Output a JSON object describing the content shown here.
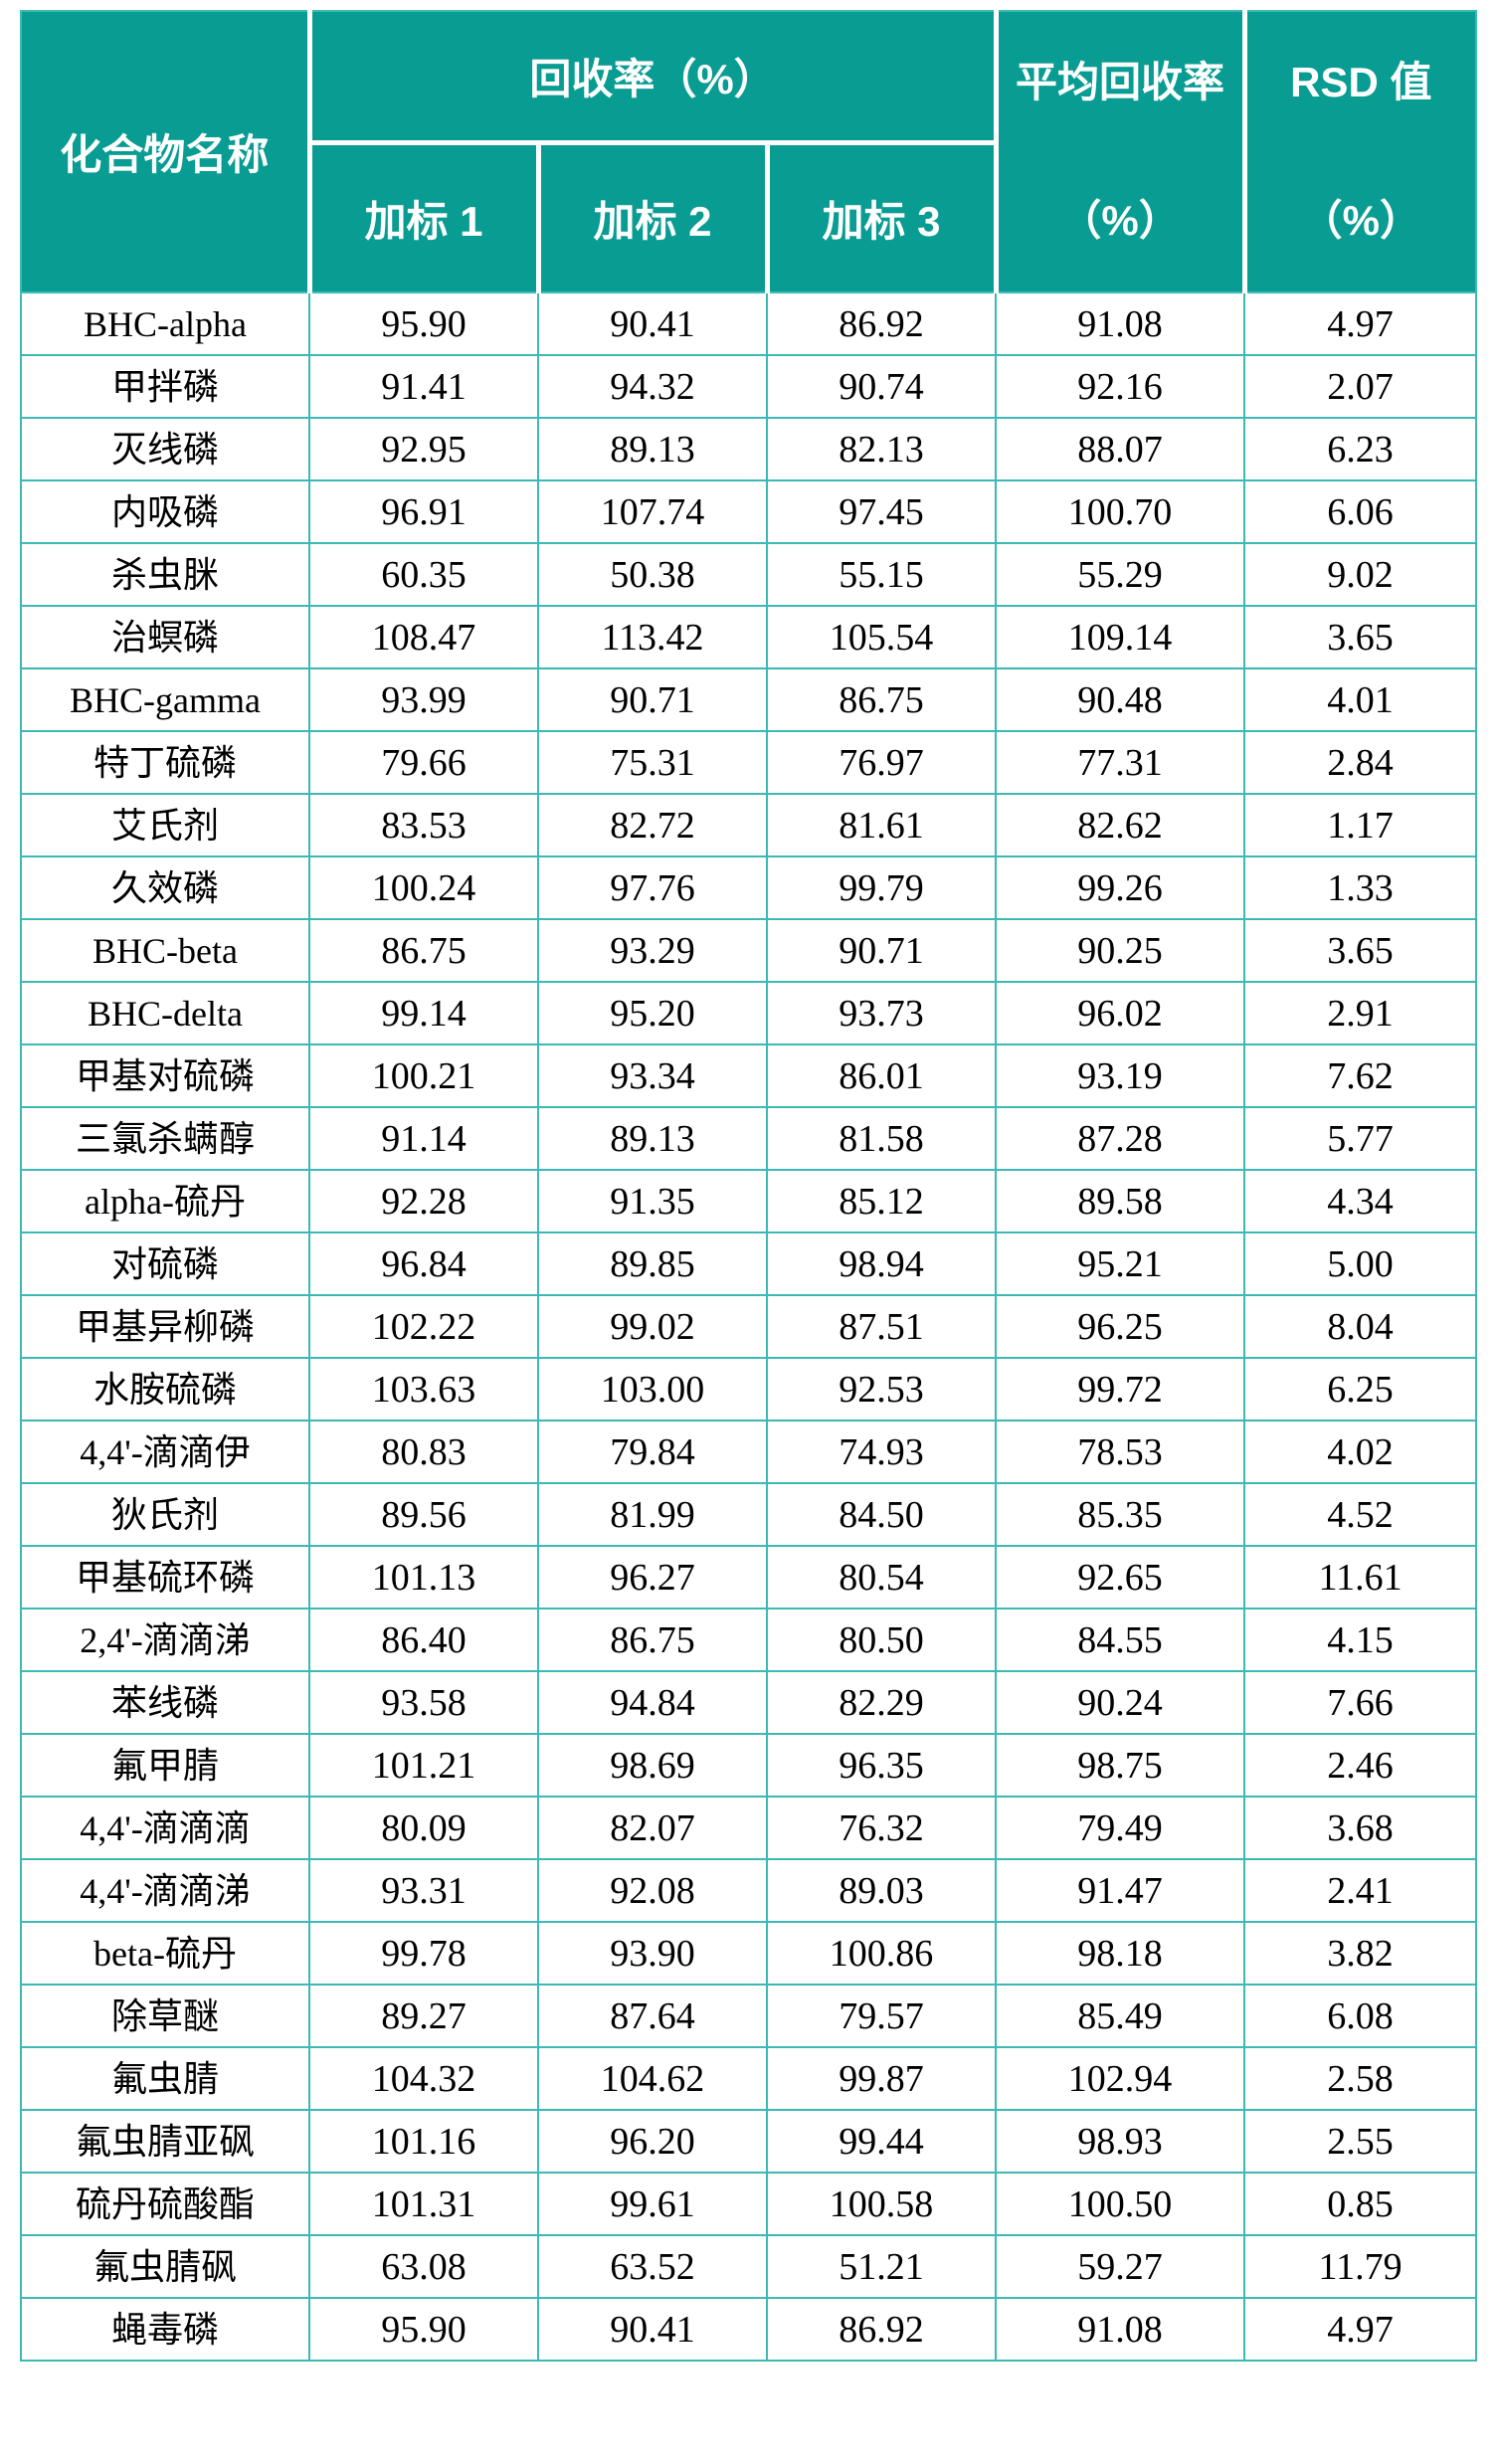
{
  "table": {
    "headers": {
      "compound": "化合物名称",
      "recovery_group": "回收率（%）",
      "spike1": "加标 1",
      "spike2": "加标 2",
      "spike3": "加标 3",
      "avg_line1": "平均回收率",
      "avg_line2": "（%）",
      "rsd_line1": "RSD 值",
      "rsd_line2": "（%）"
    }
  },
  "rows": [
    [
      "BHC-alpha",
      "95.90",
      "90.41",
      "86.92",
      "91.08",
      "4.97"
    ],
    [
      "甲拌磷",
      "91.41",
      "94.32",
      "90.74",
      "92.16",
      "2.07"
    ],
    [
      "灭线磷",
      "92.95",
      "89.13",
      "82.13",
      "88.07",
      "6.23"
    ],
    [
      "内吸磷",
      "96.91",
      "107.74",
      "97.45",
      "100.70",
      "6.06"
    ],
    [
      "杀虫脒",
      "60.35",
      "50.38",
      "55.15",
      "55.29",
      "9.02"
    ],
    [
      "治螟磷",
      "108.47",
      "113.42",
      "105.54",
      "109.14",
      "3.65"
    ],
    [
      "BHC-gamma",
      "93.99",
      "90.71",
      "86.75",
      "90.48",
      "4.01"
    ],
    [
      "特丁硫磷",
      "79.66",
      "75.31",
      "76.97",
      "77.31",
      "2.84"
    ],
    [
      "艾氏剂",
      "83.53",
      "82.72",
      "81.61",
      "82.62",
      "1.17"
    ],
    [
      "久效磷",
      "100.24",
      "97.76",
      "99.79",
      "99.26",
      "1.33"
    ],
    [
      "BHC-beta",
      "86.75",
      "93.29",
      "90.71",
      "90.25",
      "3.65"
    ],
    [
      "BHC-delta",
      "99.14",
      "95.20",
      "93.73",
      "96.02",
      "2.91"
    ],
    [
      "甲基对硫磷",
      "100.21",
      "93.34",
      "86.01",
      "93.19",
      "7.62"
    ],
    [
      "三氯杀螨醇",
      "91.14",
      "89.13",
      "81.58",
      "87.28",
      "5.77"
    ],
    [
      "alpha-硫丹",
      "92.28",
      "91.35",
      "85.12",
      "89.58",
      "4.34"
    ],
    [
      "对硫磷",
      "96.84",
      "89.85",
      "98.94",
      "95.21",
      "5.00"
    ],
    [
      "甲基异柳磷",
      "102.22",
      "99.02",
      "87.51",
      "96.25",
      "8.04"
    ],
    [
      "水胺硫磷",
      "103.63",
      "103.00",
      "92.53",
      "99.72",
      "6.25"
    ],
    [
      "4,4'-滴滴伊",
      "80.83",
      "79.84",
      "74.93",
      "78.53",
      "4.02"
    ],
    [
      "狄氏剂",
      "89.56",
      "81.99",
      "84.50",
      "85.35",
      "4.52"
    ],
    [
      "甲基硫环磷",
      "101.13",
      "96.27",
      "80.54",
      "92.65",
      "11.61"
    ],
    [
      "2,4'-滴滴涕",
      "86.40",
      "86.75",
      "80.50",
      "84.55",
      "4.15"
    ],
    [
      "苯线磷",
      "93.58",
      "94.84",
      "82.29",
      "90.24",
      "7.66"
    ],
    [
      "氟甲腈",
      "101.21",
      "98.69",
      "96.35",
      "98.75",
      "2.46"
    ],
    [
      "4,4'-滴滴滴",
      "80.09",
      "82.07",
      "76.32",
      "79.49",
      "3.68"
    ],
    [
      "4,4'-滴滴涕",
      "93.31",
      "92.08",
      "89.03",
      "91.47",
      "2.41"
    ],
    [
      "beta-硫丹",
      "99.78",
      "93.90",
      "100.86",
      "98.18",
      "3.82"
    ],
    [
      "除草醚",
      "89.27",
      "87.64",
      "79.57",
      "85.49",
      "6.08"
    ],
    [
      "氟虫腈",
      "104.32",
      "104.62",
      "99.87",
      "102.94",
      "2.58"
    ],
    [
      "氟虫腈亚砜",
      "101.16",
      "96.20",
      "99.44",
      "98.93",
      "2.55"
    ],
    [
      "硫丹硫酸酯",
      "101.31",
      "99.61",
      "100.58",
      "100.50",
      "0.85"
    ],
    [
      "氟虫腈砜",
      "63.08",
      "63.52",
      "51.21",
      "59.27",
      "11.79"
    ],
    [
      "蝇毒磷",
      "95.90",
      "90.41",
      "86.92",
      "91.08",
      "4.97"
    ]
  ],
  "colors": {
    "header_bg": "#089c93",
    "header_text": "#ffffff",
    "grid_line": "#3cb9b4",
    "body_text": "#000000",
    "page_bg": "#ffffff"
  }
}
